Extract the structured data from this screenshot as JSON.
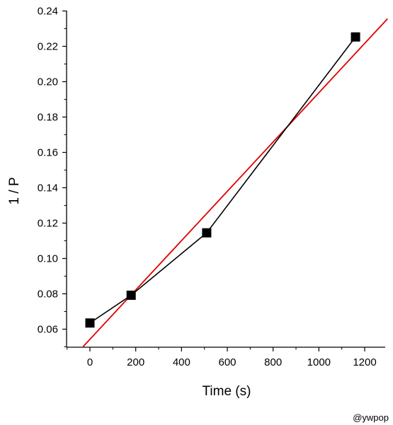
{
  "chart_data": {
    "type": "scatter",
    "xlabel": "Time (s)",
    "ylabel": "1 / P",
    "xlim": [
      -110,
      1300
    ],
    "ylim": [
      0.05,
      0.24
    ],
    "x_ticks": [
      0,
      200,
      400,
      600,
      800,
      1000,
      1200
    ],
    "x_tick_labels": [
      "0",
      "200",
      "400",
      "600",
      "800",
      "1000",
      "1200"
    ],
    "y_ticks": [
      0.06,
      0.08,
      0.1,
      0.12,
      0.14,
      0.16,
      0.18,
      0.2,
      0.22,
      0.24
    ],
    "y_tick_labels": [
      "0.06",
      "0.08",
      "0.10",
      "0.12",
      "0.14",
      "0.16",
      "0.18",
      "0.20",
      "0.22",
      "0.24"
    ],
    "grid": false,
    "series": [
      {
        "marker": "square",
        "connected": true,
        "color": "#000000",
        "x": [
          0,
          180,
          510,
          1160
        ],
        "y": [
          0.0635,
          0.0792,
          0.1145,
          0.2253
        ]
      }
    ],
    "fit_line": {
      "color": "#e00000",
      "x": [
        -30,
        1300
      ],
      "y": [
        0.0501,
        0.2356
      ]
    }
  },
  "watermark": "@ywpop"
}
